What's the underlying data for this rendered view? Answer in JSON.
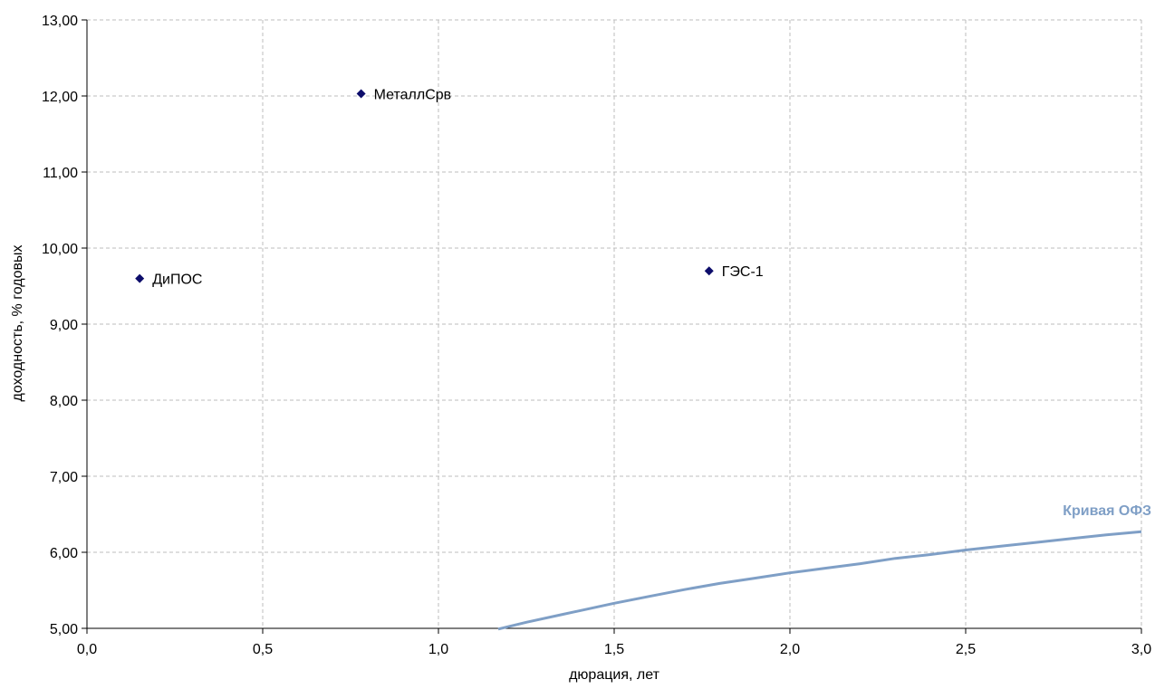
{
  "chart_data": {
    "type": "scatter",
    "title": "",
    "xlabel": "дюрация, лет",
    "ylabel": "доходность, % годовых",
    "xlim": [
      0,
      3
    ],
    "ylim": [
      5,
      13
    ],
    "grid": true,
    "x_ticks": [
      "0,0",
      "0,5",
      "1,0",
      "1,5",
      "2,0",
      "2,5",
      "3,0"
    ],
    "y_ticks": [
      "5,00",
      "6,00",
      "7,00",
      "8,00",
      "9,00",
      "10,00",
      "11,00",
      "12,00",
      "13,00"
    ],
    "points": [
      {
        "label": "ДиПОС",
        "x": 0.15,
        "y": 9.6
      },
      {
        "label": "МеталлСрв",
        "x": 0.78,
        "y": 12.03
      },
      {
        "label": "ГЭС-1",
        "x": 1.77,
        "y": 9.7
      }
    ],
    "point_color": "#0d0d6b",
    "curve": {
      "name": "Кривая ОФЗ",
      "color": "#7f9fc6",
      "x": [
        1.17,
        1.25,
        1.35,
        1.5,
        1.6,
        1.7,
        1.8,
        1.9,
        2.0,
        2.1,
        2.2,
        2.3,
        2.4,
        2.5,
        2.6,
        2.7,
        2.8,
        2.9,
        3.0
      ],
      "y": [
        4.99,
        5.08,
        5.18,
        5.33,
        5.42,
        5.51,
        5.59,
        5.66,
        5.73,
        5.79,
        5.85,
        5.92,
        5.97,
        6.03,
        6.08,
        6.13,
        6.18,
        6.23,
        6.27
      ]
    }
  }
}
